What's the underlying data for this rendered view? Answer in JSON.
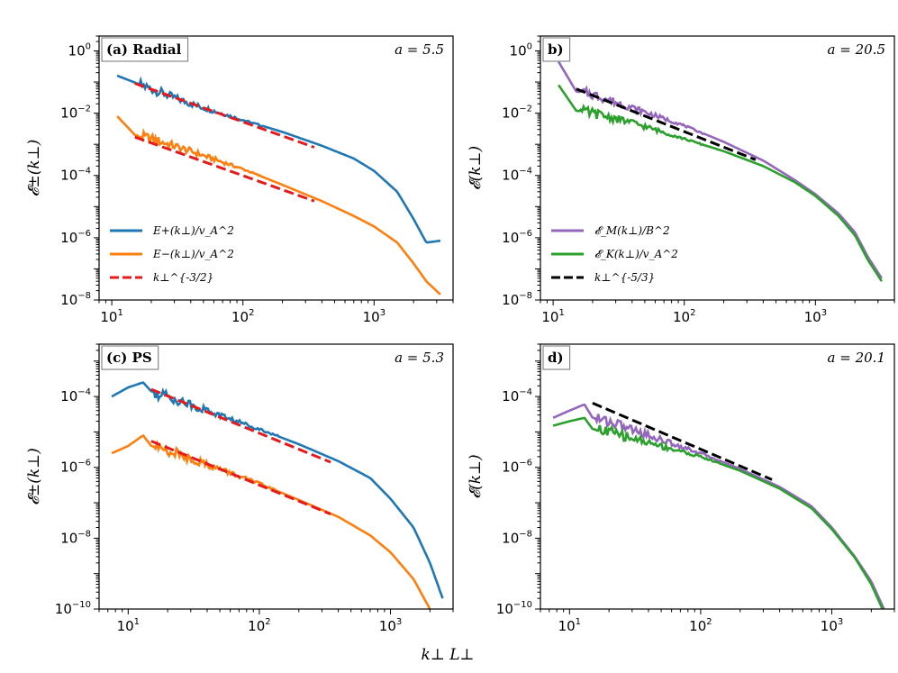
{
  "figure": {
    "xlabel": "k⊥ L⊥",
    "colors": {
      "blue": "#1f77b4",
      "orange": "#ff7f0e",
      "purple": "#9467bd",
      "green": "#2ca02c",
      "red": "#e41a1c",
      "black": "#000000"
    }
  },
  "chart_data": [
    {
      "type": "line",
      "panel_label": "(a) Radial",
      "annotation": "a = 5.5",
      "ylabel": "𝓔±(k⊥)",
      "xscale": "log",
      "yscale": "log",
      "xlim": [
        8,
        4000
      ],
      "ylim": [
        1e-08,
        3
      ],
      "xticks": [
        "10^1",
        "10^2",
        "10^3"
      ],
      "yticks": [
        "10^0",
        "10^-2",
        "10^-4",
        "10^-6",
        "10^-8"
      ],
      "legend_position": "lower-left",
      "series": [
        {
          "name": "E+(k⊥)/v_A^2",
          "color": "#1f77b4",
          "style": "solid",
          "noisy": true,
          "x": [
            11,
            20,
            40,
            100,
            200,
            400,
            700,
            1000,
            1500,
            2000,
            2500,
            3200
          ],
          "y": [
            0.16,
            0.06,
            0.02,
            0.006,
            0.0025,
            0.0009,
            0.00035,
            0.00014,
            3e-05,
            4e-06,
            7e-07,
            8e-07
          ]
        },
        {
          "name": "E−(k⊥)/v_A^2",
          "color": "#ff7f0e",
          "style": "solid",
          "noisy": true,
          "x": [
            11,
            15,
            20,
            40,
            100,
            200,
            400,
            700,
            1000,
            1500,
            2000,
            2500,
            3200
          ],
          "y": [
            0.008,
            0.002,
            0.0015,
            0.0006,
            0.00016,
            5e-05,
            1.5e-05,
            5e-06,
            2.3e-06,
            7e-07,
            1.5e-07,
            4e-08,
            1.5e-08
          ]
        },
        {
          "name": "k⊥^{-3/2}",
          "color": "#e41a1c",
          "style": "dashed",
          "noisy": false,
          "x": [
            15,
            350
          ],
          "y": [
            0.09,
            0.0008
          ]
        },
        {
          "name": "",
          "color": "#e41a1c",
          "style": "dashed",
          "noisy": false,
          "x": [
            15,
            350
          ],
          "y": [
            0.0017,
            1.5e-05
          ]
        }
      ]
    },
    {
      "type": "line",
      "panel_label": "b)",
      "annotation": "a = 20.5",
      "ylabel": "𝓔(k⊥)",
      "xscale": "log",
      "yscale": "log",
      "xlim": [
        8,
        4000
      ],
      "ylim": [
        1e-08,
        3
      ],
      "xticks": [
        "10^1",
        "10^2",
        "10^3"
      ],
      "yticks": [
        "10^0",
        "10^-2",
        "10^-4",
        "10^-6",
        "10^-8"
      ],
      "legend_position": "lower-left",
      "series": [
        {
          "name": "𝓔_M(k⊥)/B^2",
          "color": "#9467bd",
          "style": "solid",
          "noisy": true,
          "x": [
            11,
            15,
            20,
            40,
            100,
            200,
            400,
            700,
            1000,
            1500,
            2000,
            2500,
            3200
          ],
          "y": [
            0.45,
            0.05,
            0.04,
            0.015,
            0.004,
            0.0012,
            0.0003,
            7e-05,
            2.5e-05,
            6e-06,
            1.5e-06,
            2.5e-07,
            5e-08
          ]
        },
        {
          "name": "𝓔_K(k⊥)/v_A^2",
          "color": "#2ca02c",
          "style": "solid",
          "noisy": true,
          "x": [
            11,
            15,
            20,
            40,
            100,
            200,
            400,
            700,
            1000,
            1500,
            2000,
            2500,
            3200
          ],
          "y": [
            0.08,
            0.012,
            0.01,
            0.005,
            0.0015,
            0.0006,
            0.0002,
            6e-05,
            2.2e-05,
            5e-06,
            1.2e-06,
            2e-07,
            4e-08
          ]
        },
        {
          "name": "k⊥^{-5/3}",
          "color": "#000000",
          "style": "dashed",
          "noisy": false,
          "x": [
            15,
            350
          ],
          "y": [
            0.06,
            0.00032
          ]
        }
      ]
    },
    {
      "type": "line",
      "panel_label": "(c) PS",
      "annotation": "a = 5.3",
      "ylabel": "𝓔±(k⊥)",
      "xscale": "log",
      "yscale": "log",
      "xlim": [
        6,
        3000
      ],
      "ylim": [
        1e-10,
        0.003
      ],
      "xticks": [
        "10^1",
        "10^2",
        "10^3"
      ],
      "yticks": [
        "10^-4",
        "10^-6",
        "10^-8",
        "10^-10"
      ],
      "series": [
        {
          "name": "",
          "color": "#1f77b4",
          "style": "solid",
          "noisy": true,
          "x": [
            7.5,
            10,
            13,
            15,
            20,
            40,
            100,
            200,
            400,
            700,
            1000,
            1500,
            2000,
            2500
          ],
          "y": [
            0.0001,
            0.00018,
            0.00025,
            0.00014,
            0.0001,
            4e-05,
            1.2e-05,
            4.5e-06,
            1.5e-06,
            5e-07,
            1.3e-07,
            2e-08,
            2e-09,
            2e-10
          ]
        },
        {
          "name": "",
          "color": "#ff7f0e",
          "style": "solid",
          "noisy": true,
          "x": [
            7.5,
            10,
            13,
            15,
            20,
            40,
            100,
            200,
            400,
            700,
            1000,
            1500,
            2000,
            2500
          ],
          "y": [
            2.5e-06,
            4e-06,
            8e-06,
            4e-06,
            3e-06,
            1.2e-06,
            3.5e-07,
            1.2e-07,
            4e-08,
            1.2e-08,
            4e-09,
            7e-10,
            1e-10,
            1e-11
          ]
        },
        {
          "name": "",
          "color": "#e41a1c",
          "style": "dashed",
          "noisy": false,
          "x": [
            15,
            350
          ],
          "y": [
            0.00016,
            1.4e-06
          ]
        },
        {
          "name": "",
          "color": "#e41a1c",
          "style": "dashed",
          "noisy": false,
          "x": [
            15,
            350
          ],
          "y": [
            5.5e-06,
            4.8e-08
          ]
        }
      ]
    },
    {
      "type": "line",
      "panel_label": "d)",
      "annotation": "a = 20.1",
      "ylabel": "𝓔(k⊥)",
      "xscale": "log",
      "yscale": "log",
      "xlim": [
        6,
        3000
      ],
      "ylim": [
        1e-10,
        0.003
      ],
      "xticks": [
        "10^1",
        "10^2",
        "10^3"
      ],
      "yticks": [
        "10^-4",
        "10^-6",
        "10^-8",
        "10^-10"
      ],
      "series": [
        {
          "name": "",
          "color": "#9467bd",
          "style": "solid",
          "noisy": true,
          "x": [
            7.5,
            10,
            13,
            15,
            20,
            40,
            100,
            200,
            400,
            700,
            1000,
            1500,
            2000,
            2500
          ],
          "y": [
            2.5e-05,
            4e-05,
            6e-05,
            2.5e-05,
            2e-05,
            8e-06,
            2.5e-06,
            9e-07,
            2.8e-07,
            8e-08,
            2e-08,
            3e-09,
            6e-10,
            1e-10
          ]
        },
        {
          "name": "",
          "color": "#2ca02c",
          "style": "solid",
          "noisy": true,
          "x": [
            7.5,
            10,
            13,
            15,
            20,
            40,
            100,
            200,
            400,
            700,
            1000,
            1500,
            2000,
            2500
          ],
          "y": [
            1.5e-05,
            2e-05,
            2.5e-05,
            1.2e-05,
            1e-05,
            5e-06,
            2e-06,
            8e-07,
            2.5e-07,
            7e-08,
            1.8e-08,
            2.8e-09,
            5e-10,
            8e-11
          ]
        },
        {
          "name": "",
          "color": "#000000",
          "style": "dashed",
          "noisy": false,
          "x": [
            15,
            350
          ],
          "y": [
            6.5e-05,
            4.5e-07
          ]
        }
      ]
    }
  ]
}
